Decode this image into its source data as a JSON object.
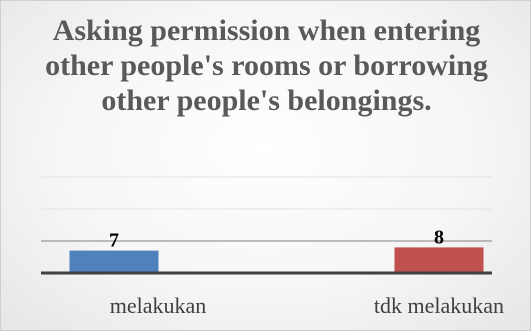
{
  "chart_data": {
    "type": "bar",
    "title": "Asking permission when entering other people's rooms or borrowing other people's belongings.",
    "categories": [
      "melakukan",
      "tdk melakukan"
    ],
    "values": [
      7,
      8
    ],
    "ylim": [
      0,
      30
    ],
    "grid": true,
    "gridlines": [
      0,
      10,
      20,
      30
    ],
    "colors": [
      "#4f81bd",
      "#c0504d"
    ],
    "axis_color": "#404040",
    "label_color": "#000000"
  }
}
